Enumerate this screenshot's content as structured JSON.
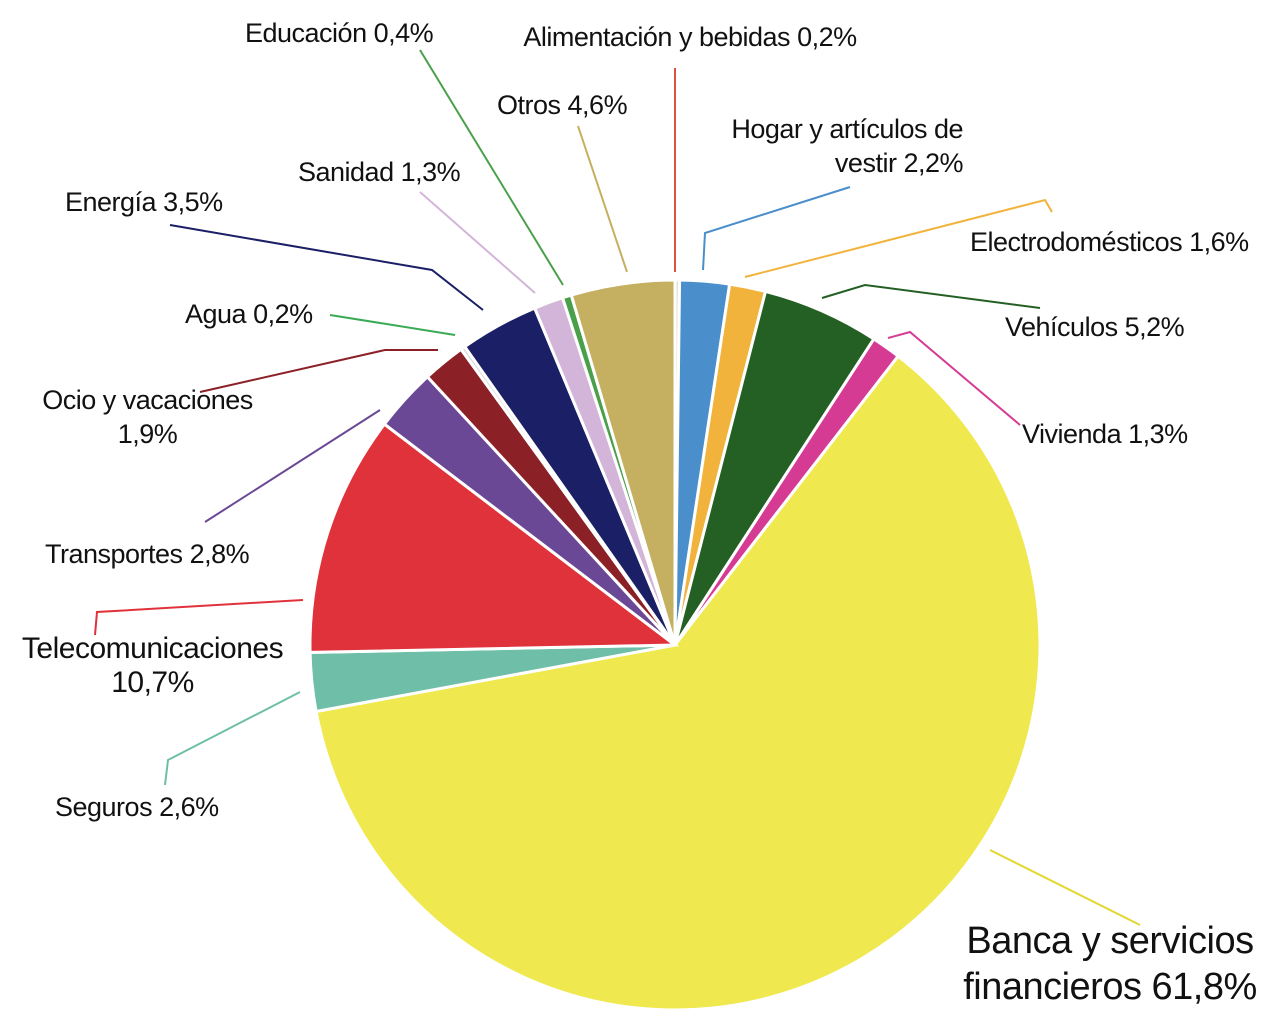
{
  "chart_data": {
    "type": "pie",
    "categories": [
      "Alimentación y bebidas",
      "Hogar y artículos de vestir",
      "Electrodomésticos",
      "Vehículos",
      "Vivienda",
      "Banca y servicios financieros",
      "Seguros",
      "Telecomunicaciones",
      "Transportes",
      "Ocio y vacaciones",
      "Agua",
      "Energía",
      "Sanidad",
      "Educación",
      "Otros"
    ],
    "values": [
      0.2,
      2.2,
      1.6,
      5.2,
      1.3,
      61.8,
      2.6,
      10.7,
      2.8,
      1.9,
      0.2,
      3.5,
      1.3,
      0.4,
      4.6
    ],
    "value_labels": [
      "0,2%",
      "2,2%",
      "1,6%",
      "5,2%",
      "1,3%",
      "61,8%",
      "2,6%",
      "10,7%",
      "2,8%",
      "1,9%",
      "0,2%",
      "3,5%",
      "1,3%",
      "0,4%",
      "4,6%"
    ],
    "colors": [
      "#e9e2d2",
      "#4a8fcb",
      "#f2b33d",
      "#245f24",
      "#d63b94",
      "#efe84f",
      "#6fbfa8",
      "#e0323a",
      "#6b4895",
      "#8c2027",
      "#dcdcdc",
      "#1a1f66",
      "#d3b5d9",
      "#4aa04a",
      "#c4b060"
    ]
  }
}
